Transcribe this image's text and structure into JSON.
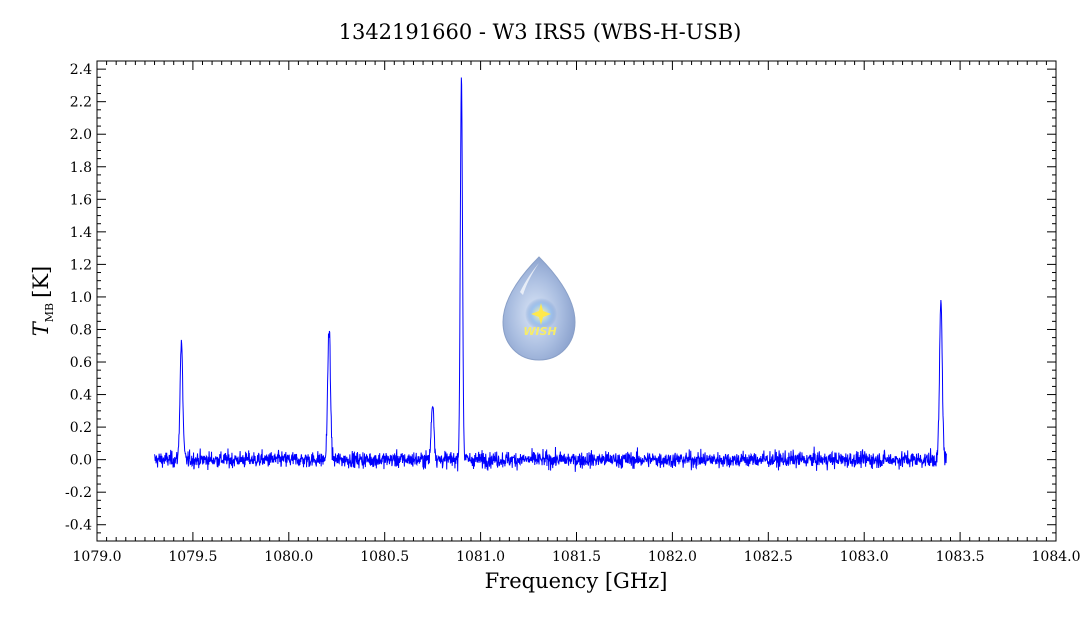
{
  "chart_data": {
    "type": "line",
    "title": "1342191660 - W3 IRS5 (WBS-H-USB)",
    "xlabel": "Frequency [GHz]",
    "ylabel": {
      "symbol": "T",
      "subscript": "MB",
      "unit": "[K]"
    },
    "xlim": [
      1079.0,
      1084.0
    ],
    "ylim": [
      -0.5,
      2.45
    ],
    "x_ticks": [
      "1079.0",
      "1079.5",
      "1080.0",
      "1080.5",
      "1081.0",
      "1081.5",
      "1082.0",
      "1082.5",
      "1083.0",
      "1083.5",
      "1084.0"
    ],
    "y_ticks": [
      "-0.4",
      "-0.2",
      "0.0",
      "0.2",
      "0.4",
      "0.6",
      "0.8",
      "1.0",
      "1.2",
      "1.4",
      "1.6",
      "1.8",
      "2.0",
      "2.2",
      "2.4"
    ],
    "grid": false,
    "series": [
      {
        "color": "#0000ff",
        "x_range": [
          1079.3,
          1083.43
        ],
        "noise_rms": 0.035,
        "peaks": [
          {
            "x": 1079.44,
            "y": 0.72
          },
          {
            "x": 1080.21,
            "y": 0.81
          },
          {
            "x": 1080.75,
            "y": 0.35
          },
          {
            "x": 1080.9,
            "y": 2.35
          },
          {
            "x": 1083.4,
            "y": 0.97
          }
        ]
      }
    ]
  },
  "logo": {
    "text": "WISH"
  }
}
